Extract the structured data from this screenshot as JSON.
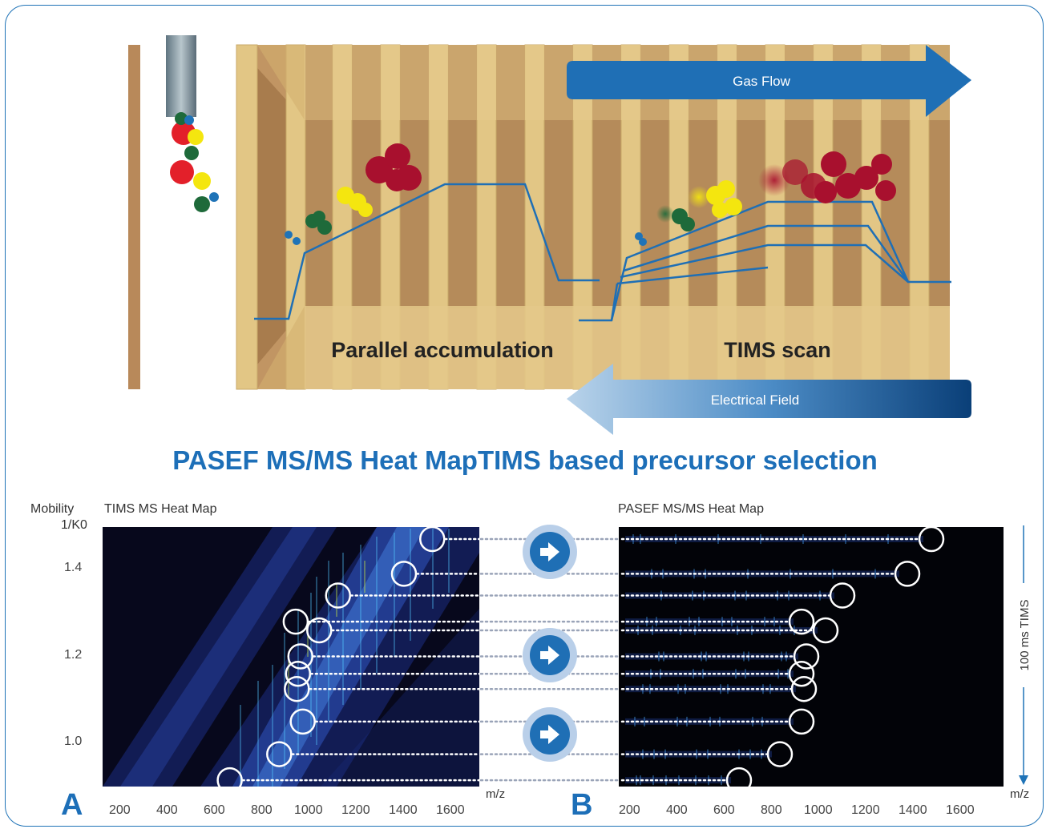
{
  "diagram": {
    "gas_flow_label": "Gas Flow",
    "electrical_field_label": "Electrical Field",
    "parallel_label": "Parallel accumulation",
    "tims_scan_label": "TIMS scan"
  },
  "heading": {
    "left": "PASEF MS/MS Heat Map",
    "right": "TIMS based precursor selection"
  },
  "panel_a": {
    "letter": "A",
    "title": "TIMS MS Heat Map",
    "ylabel_1": "Mobility",
    "ylabel_2": "1/K0",
    "xlabel": "m/z",
    "y_ticks": [
      "1.4",
      "1.2",
      "1.0"
    ],
    "x_ticks": [
      "200",
      "400",
      "600",
      "800",
      "1000",
      "1200",
      "1400",
      "1600"
    ]
  },
  "panel_b": {
    "letter": "B",
    "title": "PASEF MS/MS Heat Map",
    "xlabel": "m/z",
    "x_ticks": [
      "200",
      "400",
      "600",
      "800",
      "1000",
      "1200",
      "1400",
      "1600"
    ],
    "side_label": "100 ms TIMS"
  },
  "colors": {
    "accent_blue": "#1d6fb8",
    "heatmap_bg": "#07081c",
    "precursor_red": "#a8102e",
    "precursor_yellow": "#f4e60f",
    "precursor_green": "#1e6a3a",
    "precursor_blue": "#1f73b7"
  },
  "chart_data": [
    {
      "type": "scatter",
      "title": "TIMS MS Heat Map",
      "xlabel": "m/z",
      "ylabel": "Mobility 1/K0",
      "xlim": [
        150,
        1750
      ],
      "ylim": [
        0.9,
        1.5
      ],
      "precursors": {
        "x": [
          1550,
          1430,
          1150,
          970,
          1070,
          990,
          980,
          975,
          1000,
          900,
          690
        ],
        "y": [
          1.47,
          1.39,
          1.34,
          1.28,
          1.26,
          1.2,
          1.16,
          1.125,
          1.05,
          0.975,
          0.915
        ]
      }
    },
    {
      "type": "scatter",
      "title": "PASEF MS/MS Heat Map",
      "xlabel": "m/z",
      "xlim": [
        150,
        1750
      ],
      "precursors": {
        "x": [
          1450,
          1350,
          1080,
          910,
          1010,
          930,
          910,
          920,
          910,
          820,
          650
        ],
        "y": [
          1.47,
          1.39,
          1.34,
          1.28,
          1.26,
          1.2,
          1.16,
          1.125,
          1.05,
          0.975,
          0.915
        ]
      }
    }
  ]
}
